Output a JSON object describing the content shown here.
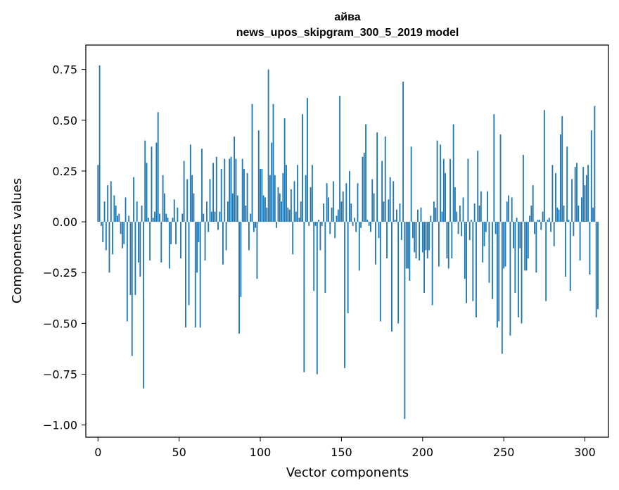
{
  "chart_data": {
    "type": "bar",
    "title": "айва",
    "subtitle": "news_upos_skipgram_300_5_2019 model",
    "xlabel": "Vector components",
    "ylabel": "Components values",
    "xlim": [
      -7.5,
      314.5
    ],
    "ylim": [
      -1.06,
      0.87
    ],
    "xticks": [
      0,
      50,
      100,
      150,
      200,
      250,
      300
    ],
    "yticks": [
      -1.0,
      -0.75,
      -0.5,
      -0.25,
      0.0,
      0.25,
      0.5,
      0.75
    ],
    "ytick_labels": [
      "−1.00",
      "−0.75",
      "−0.50",
      "−0.25",
      "0.00",
      "0.25",
      "0.50",
      "0.75"
    ],
    "bar_color": "#1f77b4",
    "values": [
      0.28,
      0.77,
      -0.02,
      -0.1,
      0.1,
      -0.14,
      0.18,
      -0.25,
      0.2,
      -0.16,
      0.13,
      0.08,
      0.03,
      0.04,
      -0.06,
      -0.13,
      -0.11,
      0.12,
      -0.49,
      0.03,
      -0.36,
      -0.66,
      0.22,
      -0.36,
      0.1,
      -0.2,
      -0.27,
      0.08,
      -0.82,
      0.4,
      0.29,
      0.02,
      -0.19,
      0.37,
      0.02,
      0.05,
      0.39,
      0.54,
      0.04,
      -0.2,
      0.23,
      0.14,
      0.04,
      0.02,
      -0.23,
      -0.11,
      0.02,
      0.11,
      -0.11,
      0.07,
      0.0,
      -0.18,
      0.04,
      0.3,
      -0.52,
      0.21,
      -0.41,
      0.38,
      0.23,
      0.14,
      -0.52,
      -0.25,
      -0.1,
      -0.52,
      0.36,
      0.04,
      -0.19,
      0.1,
      -0.05,
      0.21,
      0.05,
      0.29,
      0.05,
      0.32,
      -0.04,
      0.05,
      0.26,
      -0.21,
      0.31,
      -0.14,
      0.1,
      0.31,
      0.32,
      0.14,
      0.42,
      0.31,
      0.13,
      -0.55,
      -0.37,
      0.31,
      0.26,
      0.08,
      0.24,
      -0.14,
      0.04,
      0.58,
      -0.05,
      -0.03,
      -0.28,
      0.45,
      0.26,
      0.26,
      0.13,
      0.12,
      0.07,
      0.75,
      0.23,
      0.39,
      0.58,
      0.23,
      -0.03,
      0.17,
      0.14,
      0.1,
      0.24,
      0.51,
      0.28,
      0.07,
      0.06,
      0.16,
      -0.16,
      0.2,
      0.05,
      0.28,
      0.02,
      0.1,
      0.53,
      -0.74,
      0.23,
      0.61,
      -0.02,
      0.17,
      0.28,
      -0.34,
      -0.02,
      -0.75,
      0.01,
      -0.14,
      -0.02,
      0.09,
      -0.35,
      0.19,
      0.12,
      -0.06,
      0.07,
      0.2,
      -0.08,
      0.03,
      0.06,
      0.62,
      0.1,
      0.15,
      -0.72,
      0.19,
      -0.45,
      0.25,
      0.09,
      -0.02,
      0.02,
      -0.05,
      0.19,
      -0.24,
      -0.03,
      0.32,
      0.34,
      0.48,
      0.01,
      -0.02,
      -0.05,
      0.21,
      0.14,
      -0.21,
      0.44,
      -0.08,
      -0.49,
      0.3,
      0.1,
      0.42,
      -0.18,
      0.11,
      0.22,
      -0.54,
      0.2,
      0.01,
      0.06,
      -0.5,
      0.09,
      -0.09,
      0.69,
      -0.97,
      -0.23,
      -0.23,
      -0.29,
      0.37,
      -0.08,
      -0.15,
      -0.18,
      0.06,
      -0.19,
      0.07,
      -0.15,
      -0.35,
      -0.14,
      -0.18,
      -0.14,
      0.03,
      -0.41,
      0.1,
      0.07,
      0.4,
      -0.22,
      0.38,
      0.05,
      0.31,
      0.24,
      -0.18,
      -0.23,
      0.31,
      -0.18,
      0.48,
      0.17,
      0.05,
      -0.06,
      0.08,
      -0.07,
      0.12,
      -0.28,
      -0.4,
      0.31,
      -0.09,
      0.01,
      -0.39,
      0.09,
      -0.47,
      0.35,
      0.08,
      0.15,
      -0.2,
      -0.12,
      -0.05,
      0.15,
      -0.3,
      0.0,
      -0.38,
      0.53,
      -0.06,
      -0.52,
      -0.49,
      0.43,
      -0.65,
      -0.23,
      -0.22,
      0.1,
      0.13,
      -0.56,
      0.12,
      -0.13,
      -0.35,
      0.02,
      -0.47,
      -0.13,
      -0.5,
      0.33,
      -0.24,
      -0.24,
      -0.18,
      0.03,
      0.08,
      0.18,
      -0.06,
      -0.25,
      0.01,
      0.01,
      -0.04,
      0.05,
      0.55,
      -0.39,
      0.01,
      0.02,
      -0.05,
      0.28,
      -0.12,
      0.24,
      0.07,
      0.06,
      0.43,
      0.52,
      0.08,
      -0.27,
      0.37,
      0.01,
      -0.34,
      0.21,
      -0.07,
      0.27,
      0.29,
      0.08,
      -0.19,
      0.12,
      0.27,
      0.18,
      0.23,
      0.28,
      -0.26,
      0.45,
      0.07,
      0.57,
      -0.47,
      -0.43
    ]
  }
}
